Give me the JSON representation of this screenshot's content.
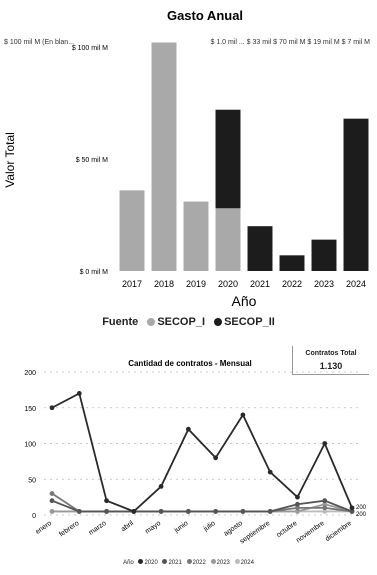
{
  "chart_data": [
    {
      "type": "bar",
      "title": "Gasto Anual",
      "xlabel": "Año",
      "ylabel": "Valor Total",
      "categories": [
        "2017",
        "2018",
        "2019",
        "2020",
        "2021",
        "2022",
        "2023",
        "2024"
      ],
      "y_ticks": [
        "$ 0 mil M",
        "$ 50 mil M",
        "$ 100 mil M"
      ],
      "ylim": [
        0,
        100
      ],
      "stacked": true,
      "series": [
        {
          "name": "SECOP_I",
          "color": "#a9a9a9",
          "values": [
            36,
            102,
            31,
            28,
            0,
            0,
            0,
            0
          ]
        },
        {
          "name": "SECOP_II",
          "color": "#1c1c1c",
          "values": [
            0,
            0,
            0,
            44,
            20,
            7,
            14,
            68
          ]
        }
      ],
      "top_labels_left": "$ 100 mil M (En blan...",
      "top_labels_right": "$ 1.0 mil ... $ 33 mil   $ 70 mil M $ 19 mil M $ 7 mil M",
      "legend_title": "Fuente",
      "legend": [
        "SECOP_I",
        "SECOP_II"
      ],
      "grid": false
    },
    {
      "type": "line",
      "title": "Cantidad de contratos - Mensual",
      "categories": [
        "enero",
        "febrero",
        "marzo",
        "abril",
        "mayo",
        "junio",
        "julio",
        "agosto",
        "septiembre",
        "octubre",
        "noviembre",
        "diciembre"
      ],
      "y_ticks": [
        "0",
        "50",
        "100",
        "150",
        "200"
      ],
      "ylim": [
        0,
        200
      ],
      "legend_title": "Año",
      "series": [
        {
          "name": "2020",
          "color": "#2a2a2a",
          "values": [
            150,
            170,
            20,
            5,
            40,
            120,
            80,
            140,
            60,
            25,
            100,
            10
          ]
        },
        {
          "name": "2021",
          "color": "#555555",
          "values": [
            20,
            5,
            5,
            5,
            5,
            5,
            5,
            5,
            5,
            15,
            20,
            5
          ]
        },
        {
          "name": "2022",
          "color": "#777777",
          "values": [
            30,
            5,
            5,
            5,
            5,
            5,
            5,
            5,
            5,
            10,
            10,
            5
          ]
        },
        {
          "name": "2023",
          "color": "#999999",
          "values": [
            5,
            5,
            5,
            5,
            5,
            5,
            5,
            5,
            5,
            5,
            15,
            5
          ]
        },
        {
          "name": "2024",
          "color": "#bbbbbb",
          "values": [
            5,
            5,
            5,
            5,
            5,
            5,
            5,
            5,
            5,
            5,
            5,
            5
          ]
        }
      ],
      "end_labels": [
        "200",
        "200"
      ]
    }
  ],
  "kpi": {
    "label": "Contratos Total",
    "value": "1.130"
  },
  "colors": {
    "secop_i": "#a9a9a9",
    "secop_ii": "#1c1c1c"
  }
}
